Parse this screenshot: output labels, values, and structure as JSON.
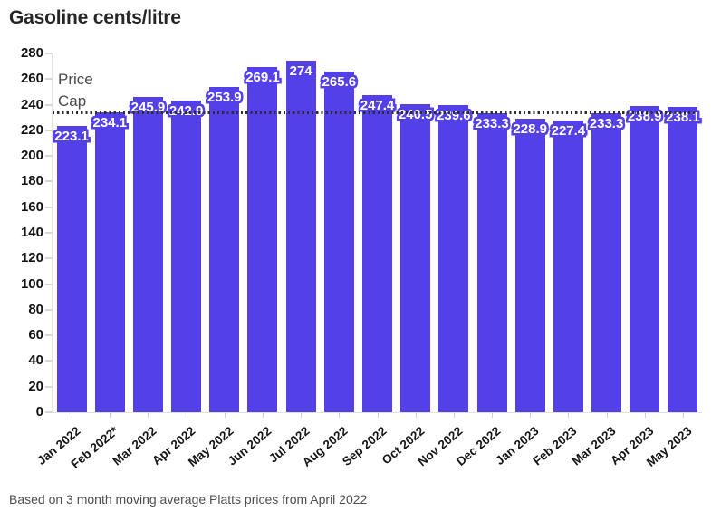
{
  "header": {
    "title": "Gasoline cents/litre"
  },
  "footer": {
    "note": "Based on 3 month moving average Platts prices from April 2022"
  },
  "colors": {
    "bar": "#5340e8",
    "cap_line": "#2d2d2d",
    "axis_text": "#111111",
    "muted_text": "#4a4a4a",
    "tick": "#d6d6d6"
  },
  "price_cap": {
    "label": "Price Cap",
    "value": 234
  },
  "chart_data": {
    "type": "bar",
    "title": "Gasoline cents/litre",
    "categories": [
      "Jan 2022",
      "Feb 2022*",
      "Mar 2022",
      "Apr 2022",
      "May 2022",
      "Jun 2022",
      "Jul 2022",
      "Aug 2022",
      "Sep 2022",
      "Oct 2022",
      "Nov 2022",
      "Dec 2022",
      "Jan 2023",
      "Feb 2023",
      "Mar 2023",
      "Apr 2023",
      "May 2023"
    ],
    "values": [
      223.1,
      234.1,
      245.9,
      242.9,
      253.9,
      269.1,
      274,
      265.6,
      247.4,
      240.5,
      239.6,
      233.3,
      228.9,
      227.4,
      233.3,
      238.9,
      238.1
    ],
    "value_labels": [
      "223.1",
      "234.1",
      "245.9",
      "242.9",
      "253.9",
      "269.1",
      "274",
      "265.6",
      "247.4",
      "240.5",
      "239.6",
      "233.3",
      "228.9",
      "227.4",
      "233.3",
      "238.9",
      "238.1"
    ],
    "xlabel": "",
    "ylabel": "",
    "ylim": [
      0,
      280
    ],
    "ytick_step": 20,
    "grid": "off",
    "legend": "none",
    "bar_color": "#5340e8",
    "annotations": [
      {
        "type": "dotted_horizontal_line",
        "label": "Price Cap",
        "value": 234
      }
    ],
    "footnote": "Based on 3 month moving average Platts prices from April 2022"
  }
}
